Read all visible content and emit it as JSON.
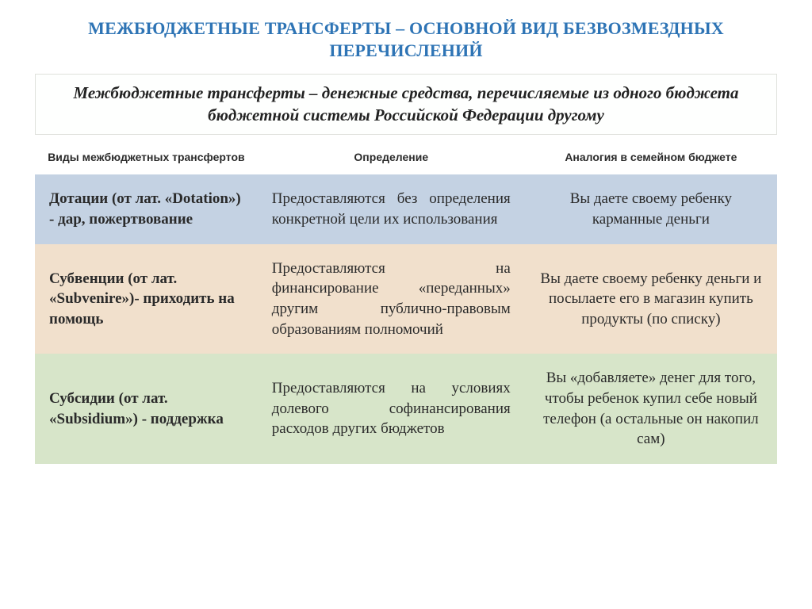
{
  "colors": {
    "title": "#2e74b5",
    "def_box_bg": "#fefffe",
    "def_box_border": "#dfe1dc",
    "row_bg": [
      "#c4d2e3",
      "#f1e0cc",
      "#d7e5c9"
    ],
    "text": "#2a2a2a"
  },
  "typography": {
    "title_fontsize": 22,
    "definition_fontsize": 21,
    "header_fontsize": 14,
    "cell_fontsize": 19,
    "header_font_family": "Arial",
    "body_font_family": "Times New Roman"
  },
  "title": "МЕЖБЮДЖЕТНЫЕ ТРАНСФЕРТЫ – ОСНОВНОЙ ВИД БЕЗВОЗМЕЗДНЫХ ПЕРЕЧИСЛЕНИЙ",
  "definition": "Межбюджетные трансферты – денежные средства, перечисляемые из одного бюджета бюджетной системы Российской Федерации другому",
  "table": {
    "column_widths_pct": [
      30,
      36,
      34
    ],
    "headers": [
      "Виды межбюджетных трансфертов",
      "Определение",
      "Аналогия в семейном бюджете"
    ],
    "rows": [
      {
        "type": "Дотации (от лат. «Dotation») - дар, пожертвование",
        "definition": "Предоставляются без определения конкретной цели их использования",
        "analogy": "Вы даете своему ребенку карманные деньги"
      },
      {
        "type": "Субвенции (от лат. «Subvenire»)- приходить на помощь",
        "definition": "Предоставляются на финансирование «переданных» другим публично-правовым образованиям полномочий",
        "analogy": "Вы даете своему ребенку деньги и посылаете его в магазин купить продукты (по списку)"
      },
      {
        "type": "Субсидии (от лат. «Subsidium») - поддержка",
        "definition": "Предоставляются на условиях долевого софинансирования расходов других бюджетов",
        "analogy": "Вы «добавляете» денег для того, чтобы ребенок купил себе новый телефон (а остальные он накопил сам)"
      }
    ]
  }
}
